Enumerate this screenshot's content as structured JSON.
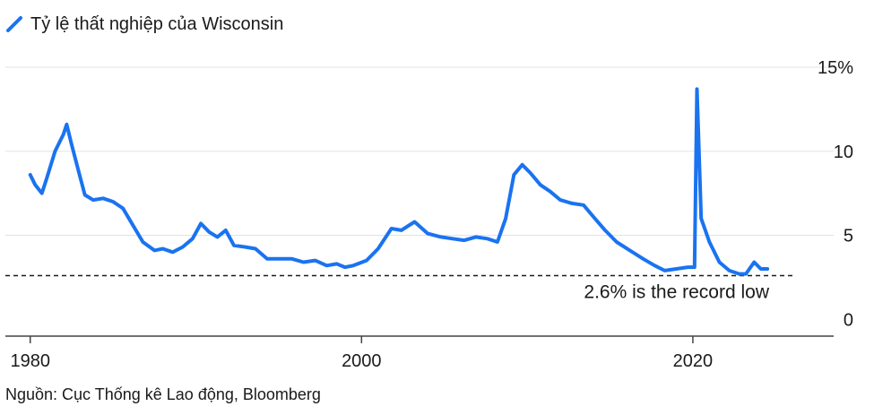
{
  "chart_data": {
    "type": "line",
    "series": [
      {
        "name": "Tỷ lệ thất nghiệp của Wisconsin",
        "color": "#1a73f0",
        "points": [
          [
            1980.0,
            8.6
          ],
          [
            1980.3,
            8.0
          ],
          [
            1980.7,
            7.5
          ],
          [
            1981.0,
            8.4
          ],
          [
            1981.5,
            10.0
          ],
          [
            1982.0,
            11.0
          ],
          [
            1982.2,
            11.6
          ],
          [
            1982.5,
            10.4
          ],
          [
            1983.0,
            8.5
          ],
          [
            1983.3,
            7.4
          ],
          [
            1983.8,
            7.1
          ],
          [
            1984.4,
            7.2
          ],
          [
            1985.0,
            7.0
          ],
          [
            1985.6,
            6.6
          ],
          [
            1986.2,
            5.6
          ],
          [
            1986.8,
            4.6
          ],
          [
            1987.5,
            4.1
          ],
          [
            1988.0,
            4.2
          ],
          [
            1988.6,
            4.0
          ],
          [
            1989.2,
            4.3
          ],
          [
            1989.8,
            4.8
          ],
          [
            1990.3,
            5.7
          ],
          [
            1990.8,
            5.2
          ],
          [
            1991.3,
            4.9
          ],
          [
            1991.8,
            5.3
          ],
          [
            1992.3,
            4.4
          ],
          [
            1993.0,
            4.3
          ],
          [
            1993.6,
            4.2
          ],
          [
            1994.3,
            3.6
          ],
          [
            1995.0,
            3.6
          ],
          [
            1995.8,
            3.6
          ],
          [
            1996.5,
            3.4
          ],
          [
            1997.2,
            3.5
          ],
          [
            1997.9,
            3.2
          ],
          [
            1998.5,
            3.3
          ],
          [
            1999.0,
            3.1
          ],
          [
            1999.5,
            3.2
          ],
          [
            2000.3,
            3.5
          ],
          [
            2001.0,
            4.2
          ],
          [
            2001.8,
            5.4
          ],
          [
            2002.4,
            5.3
          ],
          [
            2003.2,
            5.8
          ],
          [
            2004.0,
            5.1
          ],
          [
            2004.8,
            4.9
          ],
          [
            2005.5,
            4.8
          ],
          [
            2006.2,
            4.7
          ],
          [
            2006.9,
            4.9
          ],
          [
            2007.6,
            4.8
          ],
          [
            2008.2,
            4.6
          ],
          [
            2008.7,
            6.0
          ],
          [
            2009.2,
            8.6
          ],
          [
            2009.7,
            9.2
          ],
          [
            2010.2,
            8.7
          ],
          [
            2010.8,
            8.0
          ],
          [
            2011.4,
            7.6
          ],
          [
            2012.0,
            7.1
          ],
          [
            2012.7,
            6.9
          ],
          [
            2013.4,
            6.8
          ],
          [
            2014.0,
            6.1
          ],
          [
            2014.7,
            5.3
          ],
          [
            2015.4,
            4.6
          ],
          [
            2016.2,
            4.1
          ],
          [
            2017.0,
            3.6
          ],
          [
            2017.7,
            3.2
          ],
          [
            2018.3,
            2.9
          ],
          [
            2019.0,
            3.0
          ],
          [
            2019.7,
            3.1
          ],
          [
            2020.1,
            3.1
          ],
          [
            2020.25,
            13.7
          ],
          [
            2020.5,
            6.0
          ],
          [
            2021.0,
            4.6
          ],
          [
            2021.6,
            3.4
          ],
          [
            2022.2,
            2.9
          ],
          [
            2022.8,
            2.7
          ],
          [
            2023.2,
            2.7
          ],
          [
            2023.7,
            3.4
          ],
          [
            2024.1,
            3.0
          ],
          [
            2024.5,
            3.0
          ]
        ]
      }
    ],
    "record_low": {
      "value": 2.6,
      "label": "2.6% is the record low"
    },
    "x_ticks": [
      1980,
      2000,
      2020
    ],
    "x_tick_labels": [
      "1980",
      "2000",
      "2020"
    ],
    "y_ticks": [
      0,
      5,
      10,
      15
    ],
    "y_tick_labels": [
      "0",
      "5",
      "10",
      "15%"
    ],
    "xlim": [
      1978.5,
      2028.5
    ],
    "ylim": [
      -1.0,
      15.0
    ],
    "grid": true,
    "title": "",
    "xlabel": "",
    "ylabel": ""
  },
  "legend_label": "Tỷ lệ thất nghiệp của Wisconsin",
  "source": "Nguồn: Cục Thống kê Lao động, Bloomberg"
}
